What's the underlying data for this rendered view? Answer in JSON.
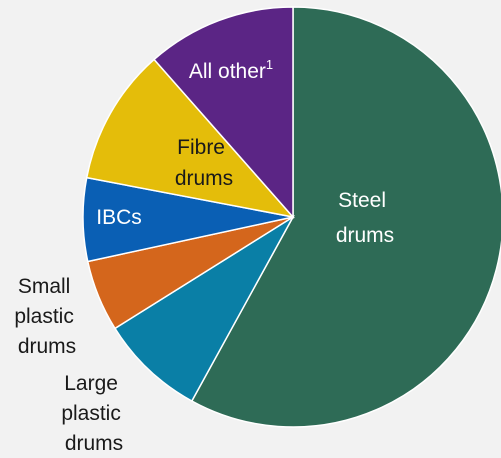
{
  "chart_data": {
    "type": "pie",
    "title": "",
    "start_at": "12 o'clock",
    "direction": "clockwise",
    "slices": [
      {
        "label_lines": [
          "Steel",
          "drums"
        ],
        "value": 58.0,
        "color": "#2e6b56",
        "label_color": "#ffffff"
      },
      {
        "label_lines": [
          "Large",
          "plastic",
          "drums"
        ],
        "value": 8.1,
        "color": "#0a7fa6",
        "label_color": "#1a1a1a"
      },
      {
        "label_lines": [
          "Small",
          "plastic",
          "drums"
        ],
        "value": 5.5,
        "color": "#d4661c",
        "label_color": "#1a1a1a"
      },
      {
        "label_lines": [
          "IBCs"
        ],
        "value": 6.4,
        "color": "#0a5fb4",
        "label_color": "#ffffff"
      },
      {
        "label_lines": [
          "Fibre",
          "drums"
        ],
        "value": 10.5,
        "color": "#e4bd0a",
        "label_color": "#1a1a1a"
      },
      {
        "label_lines": [
          "All other",
          "1"
        ],
        "value": 11.5,
        "color": "#5b2585",
        "label_color": "#ffffff"
      }
    ]
  }
}
